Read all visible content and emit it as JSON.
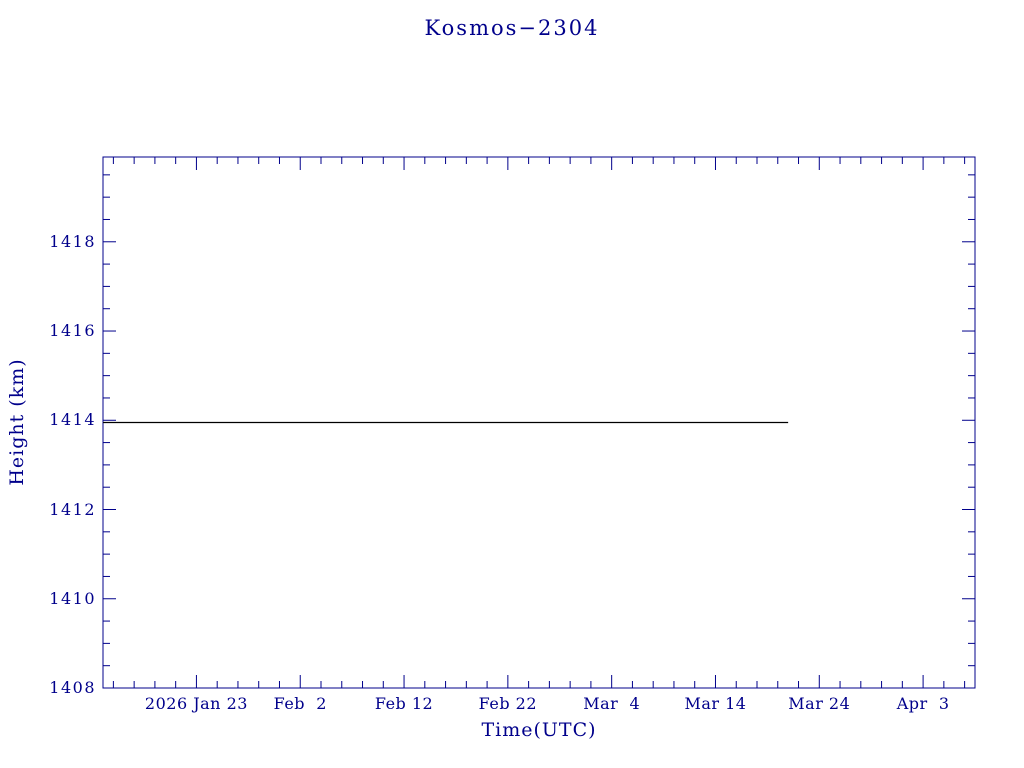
{
  "page": {
    "background": "#ffffff"
  },
  "chart_data": {
    "type": "line",
    "title": "Kosmos−2304",
    "xlabel": "Time(UTC)",
    "ylabel": "Height (km)",
    "axis_color": "#00008B",
    "x_unit": "days since 2026 Jan 14 (UTC)",
    "xlim": [
      0,
      84
    ],
    "ylim": [
      1408,
      1419.9
    ],
    "x_major_ticks": [
      {
        "x": 9,
        "label": "2026 Jan 23"
      },
      {
        "x": 19,
        "label": "Feb  2"
      },
      {
        "x": 29,
        "label": "Feb 12"
      },
      {
        "x": 39,
        "label": "Feb 22"
      },
      {
        "x": 49,
        "label": "Mar  4"
      },
      {
        "x": 59,
        "label": "Mar 14"
      },
      {
        "x": 69,
        "label": "Mar 24"
      },
      {
        "x": 79,
        "label": "Apr  3"
      }
    ],
    "x_minor_step": 2,
    "y_major_ticks": [
      1408,
      1410,
      1412,
      1414,
      1416,
      1418
    ],
    "y_minor_step": 0.5,
    "grid": false,
    "legend": false,
    "series": [
      {
        "name": "orbit-height",
        "color": "#000000",
        "points": [
          [
            0,
            1413.95
          ],
          [
            66,
            1413.95
          ]
        ]
      }
    ]
  }
}
